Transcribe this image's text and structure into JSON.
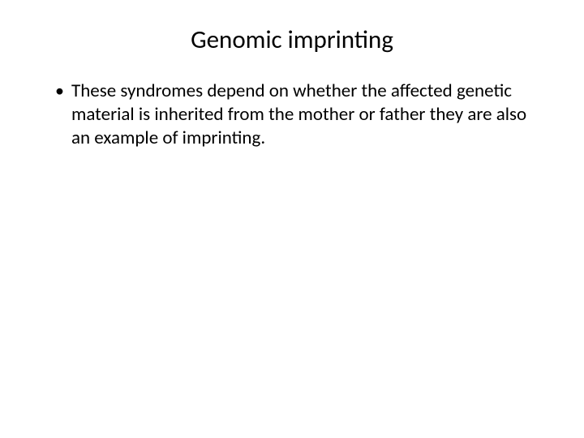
{
  "slide": {
    "title": "Genomic imprinting",
    "bullets": [
      "These syndromes depend on whether the affected genetic material is inherited from the mother or father they are also an example of imprinting."
    ],
    "background_color": "#ffffff",
    "text_color": "#000000",
    "title_fontsize": 31,
    "body_fontsize": 23
  }
}
